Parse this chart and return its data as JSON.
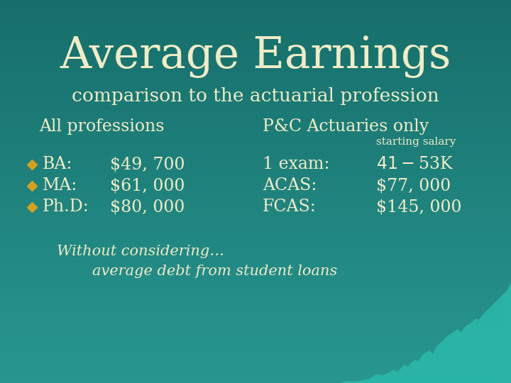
{
  "title": "Average Earnings",
  "subtitle": "comparison to the actuarial profession",
  "bg_color_top": "#1a7070",
  "bg_color_bottom": "#2a9898",
  "text_color": "#f0ecc8",
  "gold_color": "#d4a020",
  "teal_wave_color": "#2ab8a8",
  "all_prof_header": "All professions",
  "pac_header": "P&C Actuaries only",
  "starting_salary_label": "starting salary",
  "bullet_items": [
    {
      "label": "BA:",
      "value": "$49, 700",
      "exam": "1 exam:",
      "exam_val": "$41 - $53K"
    },
    {
      "label": "MA:",
      "value": "$61, 000",
      "exam": "ACAS:",
      "exam_val": "$77, 000"
    },
    {
      "label": "Ph.D:",
      "value": "$80, 000",
      "exam": "FCAS:",
      "exam_val": "$145, 000"
    }
  ],
  "footer_line1": "Without considering…",
  "footer_line2": "average debt from student loans",
  "title_fontsize": 44,
  "subtitle_fontsize": 19,
  "header_fontsize": 17,
  "body_fontsize": 17,
  "small_fontsize": 11,
  "footer_fontsize": 15
}
